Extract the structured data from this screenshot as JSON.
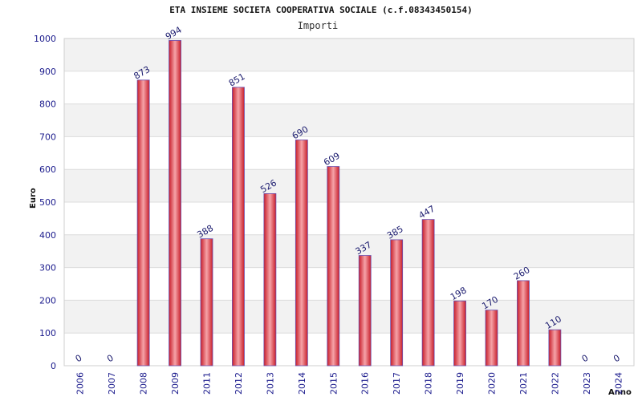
{
  "chart_data": {
    "type": "bar",
    "title": "ETA INSIEME SOCIETA COOPERATIVA SOCIALE (c.f.08343450154)",
    "subtitle": "Importi",
    "ylabel": "Euro",
    "xlabel": "Anno",
    "ylim": [
      0,
      1000
    ],
    "yticks": [
      0,
      100,
      200,
      300,
      400,
      500,
      600,
      700,
      800,
      900,
      1000
    ],
    "grid": true,
    "categories": [
      "2006",
      "2007",
      "2008",
      "2009",
      "2011",
      "2012",
      "2013",
      "2014",
      "2015",
      "2016",
      "2017",
      "2018",
      "2019",
      "2020",
      "2021",
      "2022",
      "2023",
      "2024"
    ],
    "values": [
      0,
      0,
      873,
      994,
      388,
      851,
      526,
      690,
      609,
      337,
      385,
      447,
      198,
      170,
      260,
      110,
      0,
      0
    ],
    "colors": {
      "bar": "#e8323c",
      "bar_highlight": "#f6a3a8",
      "bar_edge": "#6a4fb0",
      "band": "#f2f2f2",
      "tick_text": "#1a1a8c"
    }
  }
}
